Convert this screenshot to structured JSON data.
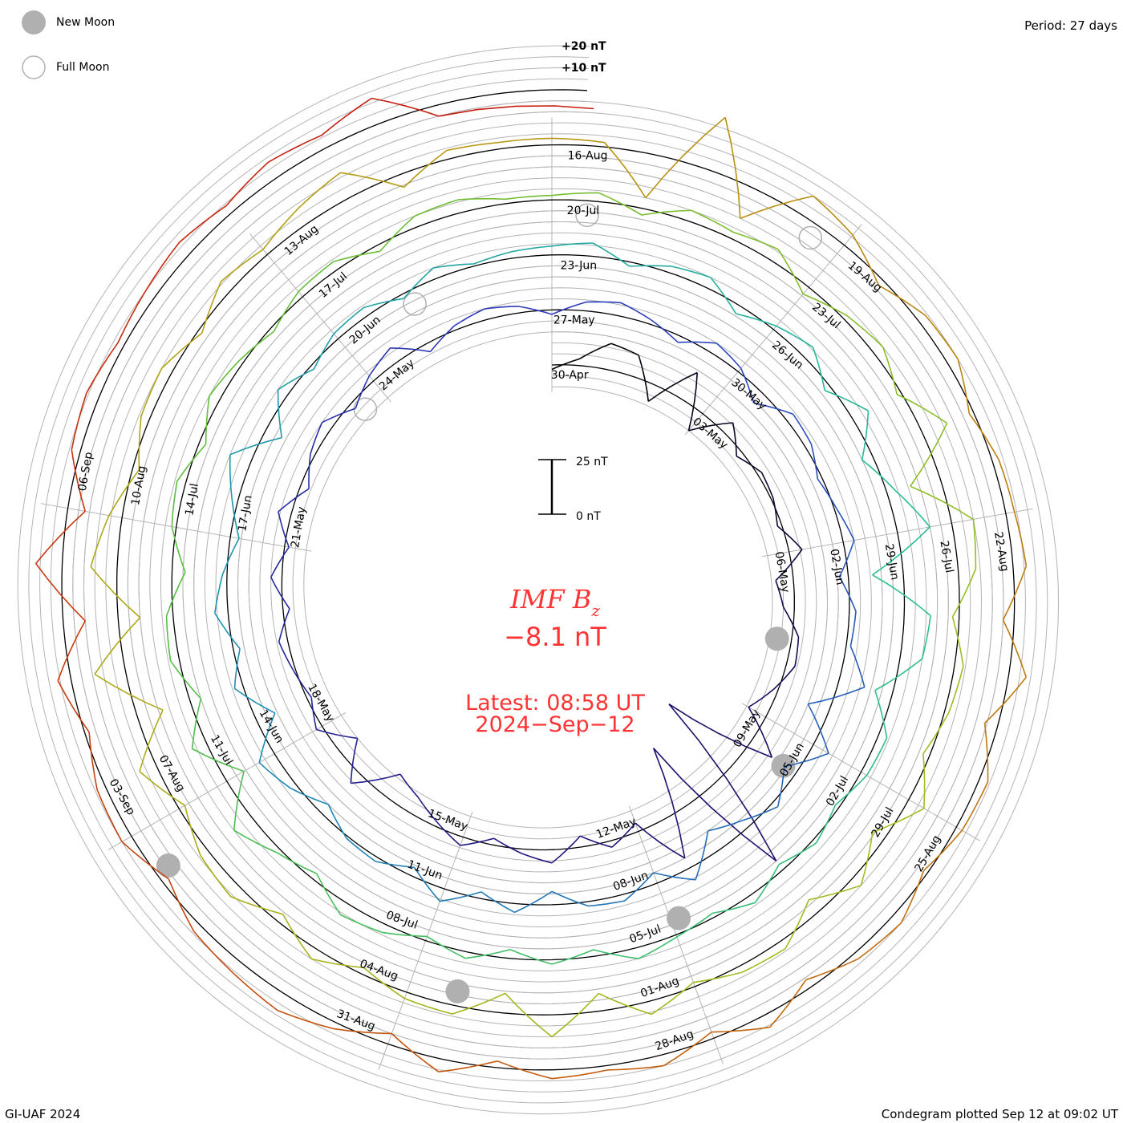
{
  "legend": {
    "new_moon": "New Moon",
    "full_moon": "Full Moon"
  },
  "period_label": "Period: 27 days",
  "credit": "GI-UAF 2024",
  "plotted": "Condegram plotted Sep 12 at 09:02 UT",
  "colors": {
    "text_red": "#ff3333",
    "grid": "#b4b4b4",
    "moon": "#b0b0b0"
  },
  "chart_data": {
    "type": "line",
    "title": "IMF B",
    "title_sub": "z",
    "current_value": "−8.1 nT",
    "latest_line1": "Latest: 08:58 UT",
    "latest_line2": "2024−Sep−12",
    "scale": {
      "top": "25 nT",
      "bottom": "0 nT",
      "plus20": "+20 nT",
      "plus10": "+10 nT",
      "span_nT": 25
    },
    "period_days": 27,
    "start_date": "2024-04-30",
    "end_day": 135.37,
    "grid_step_nT": 5,
    "sample_step_days": 0.5,
    "bz_nT": [
      -2,
      3,
      12,
      10,
      -8,
      14,
      -10,
      6,
      -3,
      2,
      1,
      -2,
      6,
      -8,
      -5,
      3,
      4,
      -2,
      -9,
      12,
      -40,
      45,
      -30,
      20,
      -4,
      3,
      -5,
      6,
      2,
      -3,
      4,
      -2,
      -8,
      -12,
      6,
      -10,
      3,
      -2,
      1,
      4,
      -3,
      5,
      -2,
      6,
      -4,
      2,
      5,
      -3,
      3,
      7,
      -4,
      2,
      5,
      3,
      -2,
      4,
      6,
      2,
      -3,
      5,
      2,
      -6,
      4,
      3,
      -2,
      1,
      5,
      -4,
      3,
      2,
      12,
      -10,
      8,
      -6,
      3,
      -4,
      -10,
      6,
      -5,
      3,
      2,
      -6,
      4,
      -3,
      6,
      -4,
      2,
      1,
      -5,
      3,
      8,
      -9,
      4,
      -3,
      6,
      2,
      -4,
      3,
      10,
      -8,
      5,
      -2,
      3,
      4,
      -2,
      5,
      1,
      3,
      4,
      6,
      -2,
      3,
      5,
      -4,
      2,
      6,
      -3,
      8,
      -5,
      4,
      15,
      -14,
      12,
      10,
      -8,
      4,
      3,
      -2,
      2,
      -3,
      4,
      -2,
      1,
      5,
      -3,
      2,
      -4,
      3,
      -2,
      4,
      6,
      -3,
      2,
      10,
      -9,
      7,
      -5,
      4,
      3,
      -6,
      2,
      4,
      -3,
      5,
      2,
      -2,
      3,
      4,
      -3,
      5,
      6,
      2,
      2,
      4,
      -3,
      5,
      3,
      6,
      -4,
      2,
      5,
      -2,
      12,
      -14,
      10,
      8,
      -3,
      4,
      2,
      -3,
      8,
      -6,
      5,
      -7,
      4,
      3,
      -2,
      6,
      -8,
      10,
      -9,
      4,
      3,
      -3,
      5,
      -4,
      6,
      4,
      -3,
      8,
      -12,
      14,
      -10,
      12,
      6,
      -3,
      4,
      5,
      -2,
      6,
      3,
      8,
      12,
      -6,
      4,
      3,
      3,
      2,
      -20,
      25,
      -15,
      10,
      6,
      -3,
      4,
      5,
      -2,
      3,
      4,
      6,
      -5,
      8,
      -6,
      4,
      3,
      -2,
      5,
      3,
      -4,
      6,
      -3,
      5,
      2,
      4,
      -3,
      6,
      -5,
      3,
      8,
      6,
      4,
      -3,
      5,
      4,
      -2,
      6,
      -10,
      12,
      -8,
      4,
      6,
      3,
      5,
      7,
      4,
      8,
      6,
      12,
      -5,
      -8.1
    ],
    "new_moons_day": [
      7.6,
      36.5,
      65.9,
      95.5,
      125.6
    ],
    "full_moons_day": [
      23.6,
      52.1,
      81.4,
      110.7
    ],
    "date_labels": [
      {
        "t": 0,
        "label": "30-Apr"
      },
      {
        "t": 3,
        "label": "03-May"
      },
      {
        "t": 6,
        "label": "06-May"
      },
      {
        "t": 9,
        "label": "09-May"
      },
      {
        "t": 12,
        "label": "12-May"
      },
      {
        "t": 15,
        "label": "15-May"
      },
      {
        "t": 18,
        "label": "18-May"
      },
      {
        "t": 21,
        "label": "21-May"
      },
      {
        "t": 24,
        "label": "24-May"
      },
      {
        "t": 27,
        "label": "27-May"
      },
      {
        "t": 30,
        "label": "30-May"
      },
      {
        "t": 33,
        "label": "02-Jun"
      },
      {
        "t": 36,
        "label": "05-Jun"
      },
      {
        "t": 39,
        "label": "08-Jun"
      },
      {
        "t": 42,
        "label": "11-Jun"
      },
      {
        "t": 45,
        "label": "14-Jun"
      },
      {
        "t": 48,
        "label": "17-Jun"
      },
      {
        "t": 51,
        "label": "20-Jun"
      },
      {
        "t": 54,
        "label": "23-Jun"
      },
      {
        "t": 57,
        "label": "26-Jun"
      },
      {
        "t": 60,
        "label": "29-Jun"
      },
      {
        "t": 63,
        "label": "02-Jul"
      },
      {
        "t": 66,
        "label": "05-Jul"
      },
      {
        "t": 69,
        "label": "08-Jul"
      },
      {
        "t": 72,
        "label": "11-Jul"
      },
      {
        "t": 75,
        "label": "14-Jul"
      },
      {
        "t": 78,
        "label": "17-Jul"
      },
      {
        "t": 81,
        "label": "20-Jul"
      },
      {
        "t": 84,
        "label": "23-Jul"
      },
      {
        "t": 87,
        "label": "26-Jul"
      },
      {
        "t": 90,
        "label": "29-Jul"
      },
      {
        "t": 93,
        "label": "01-Aug"
      },
      {
        "t": 96,
        "label": "04-Aug"
      },
      {
        "t": 99,
        "label": "07-Aug"
      },
      {
        "t": 102,
        "label": "10-Aug"
      },
      {
        "t": 105,
        "label": "13-Aug"
      },
      {
        "t": 108,
        "label": "16-Aug"
      },
      {
        "t": 111,
        "label": "19-Aug"
      },
      {
        "t": 114,
        "label": "22-Aug"
      },
      {
        "t": 117,
        "label": "25-Aug"
      },
      {
        "t": 120,
        "label": "28-Aug"
      },
      {
        "t": 123,
        "label": "31-Aug"
      },
      {
        "t": 126,
        "label": "03-Sep"
      },
      {
        "t": 129,
        "label": "06-Sep"
      }
    ]
  }
}
